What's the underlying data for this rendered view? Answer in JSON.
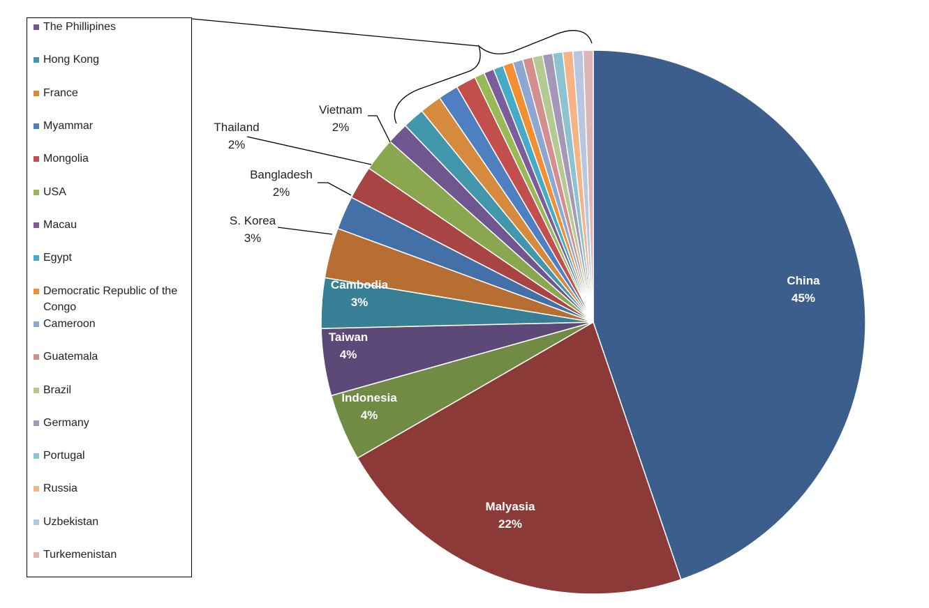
{
  "chart_data": {
    "type": "pie",
    "slices": [
      {
        "label": "China",
        "value": 45,
        "pct_label": "45%",
        "color": "#3b5e8c"
      },
      {
        "label": "Malyasia",
        "value": 22,
        "pct_label": "22%",
        "color": "#8b3a38"
      },
      {
        "label": "Indonesia",
        "value": 4,
        "pct_label": "4%",
        "color": "#728b44"
      },
      {
        "label": "Taiwan",
        "value": 4,
        "pct_label": "4%",
        "color": "#5c4977"
      },
      {
        "label": "Cambodia",
        "value": 3,
        "pct_label": "3%",
        "color": "#367f94"
      },
      {
        "label": "S. Korea",
        "value": 3,
        "pct_label": "3%",
        "color": "#b76e33"
      },
      {
        "label": "Bangladesh",
        "value": 2,
        "pct_label": "2%",
        "color": "#4470a8"
      },
      {
        "label": "Thailand",
        "value": 2,
        "pct_label": "2%",
        "color": "#a94444"
      },
      {
        "label": "Vietnam",
        "value": 2,
        "pct_label": "2%",
        "color": "#8aa64f"
      },
      {
        "label": "The Phillipines",
        "value": 1.3,
        "color": "#70568f"
      },
      {
        "label": "Hong Kong",
        "value": 1.3,
        "color": "#4397ad"
      },
      {
        "label": "France",
        "value": 1.3,
        "color": "#d58a3e"
      },
      {
        "label": "Myammar",
        "value": 1.2,
        "color": "#4e7fc0"
      },
      {
        "label": "Mongolia",
        "value": 1.2,
        "color": "#c24f4c"
      },
      {
        "label": "USA",
        "value": 0.6,
        "color": "#98b955"
      },
      {
        "label": "Macau",
        "value": 0.6,
        "color": "#7a5e9a"
      },
      {
        "label": "Egypt",
        "value": 0.6,
        "color": "#45abc6"
      },
      {
        "label": "Democratic Republic of the Congo",
        "value": 0.6,
        "color": "#f28f32"
      },
      {
        "label": "Cameroon",
        "value": 0.6,
        "color": "#8fa7d0"
      },
      {
        "label": "Guatemala",
        "value": 0.6,
        "color": "#d38f8e"
      },
      {
        "label": "Brazil",
        "value": 0.6,
        "color": "#b5ca91"
      },
      {
        "label": "Germany",
        "value": 0.6,
        "color": "#a497ba"
      },
      {
        "label": "Portugal",
        "value": 0.6,
        "color": "#8dc2d1"
      },
      {
        "label": "Russia",
        "value": 0.6,
        "color": "#f6b385"
      },
      {
        "label": "Uzbekistan",
        "value": 0.6,
        "color": "#b8c7e0"
      },
      {
        "label": "Turkemenistan",
        "value": 0.6,
        "color": "#dcb5b4"
      }
    ],
    "legend": {
      "placement": "left",
      "entries": [
        {
          "label": "The Phillipines",
          "color": "#70568f"
        },
        {
          "label": "Hong Kong",
          "color": "#4397ad"
        },
        {
          "label": "France",
          "color": "#d58a3e"
        },
        {
          "label": "Myammar",
          "color": "#4e7fc0"
        },
        {
          "label": "Mongolia",
          "color": "#c24f4c"
        },
        {
          "label": "USA",
          "color": "#98b955"
        },
        {
          "label": "Macau",
          "color": "#7a5e9a"
        },
        {
          "label": "Egypt",
          "color": "#45abc6"
        },
        {
          "label": "Democratic Republic of the Congo",
          "color": "#f28f32"
        },
        {
          "label": "Cameroon",
          "color": "#8fa7d0"
        },
        {
          "label": "Guatemala",
          "color": "#d38f8e"
        },
        {
          "label": "Brazil",
          "color": "#b5ca91"
        },
        {
          "label": "Germany",
          "color": "#a497ba"
        },
        {
          "label": "Portugal",
          "color": "#8dc2d1"
        },
        {
          "label": "Russia",
          "color": "#f6b385"
        },
        {
          "label": "Uzbekistan",
          "color": "#b8c7e0"
        },
        {
          "label": "Turkemenistan",
          "color": "#dcb5b4"
        }
      ]
    }
  }
}
